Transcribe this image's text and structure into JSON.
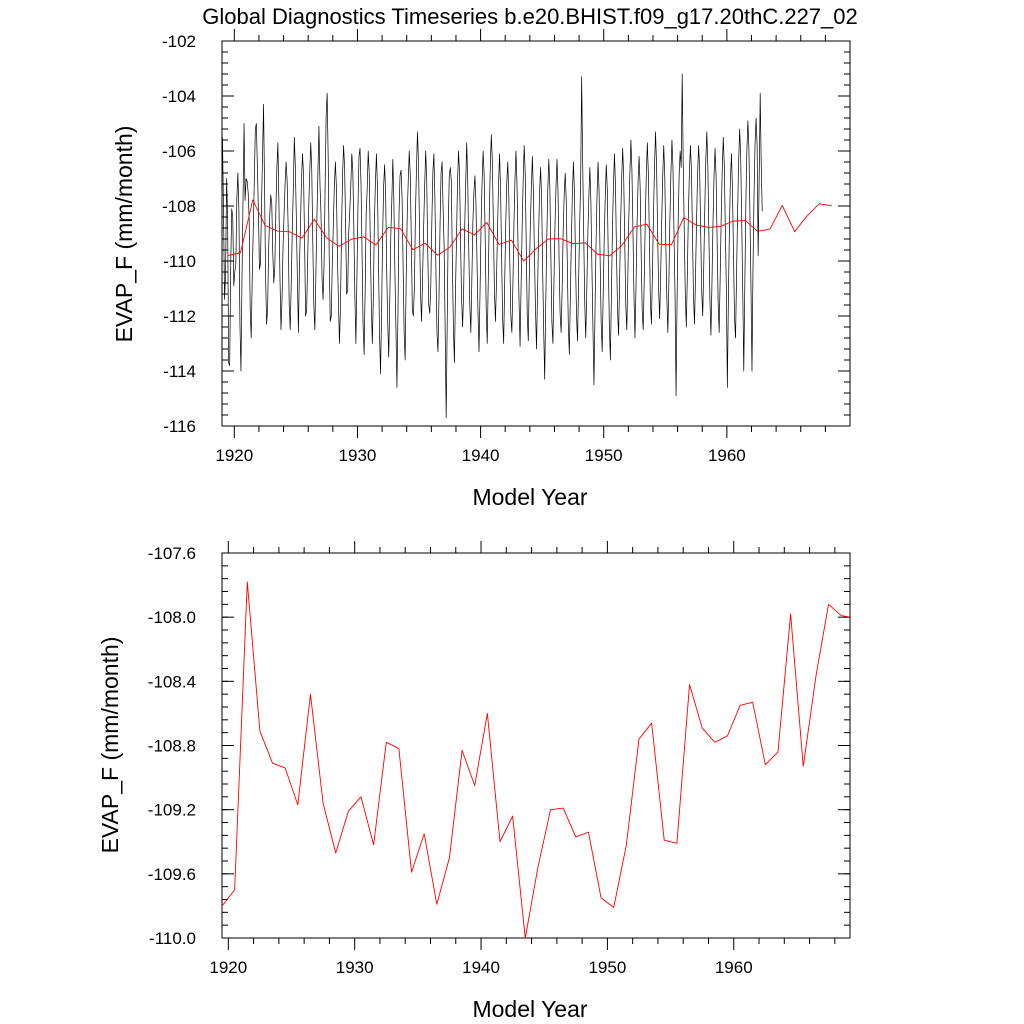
{
  "title": "Global Diagnostics Timeseries b.e20.BHIST.f09_g17.20thC.227_02",
  "colors": {
    "monthly": "#000000",
    "annual": "#ff0000",
    "frame": "#000000"
  },
  "chart_data": [
    {
      "type": "line",
      "panel": "monthly-and-annual",
      "xlabel": "Model Year",
      "ylabel": "EVAP_F (mm/month)",
      "xlim": [
        1919,
        1970
      ],
      "ylim": [
        -116,
        -102
      ],
      "xticks": [
        1920,
        1930,
        1940,
        1950,
        1960
      ],
      "xtick_labels": [
        "1920",
        "1930",
        "1940",
        "1950",
        "1960"
      ],
      "yticks": [
        -116,
        -114,
        -112,
        -110,
        -108,
        -106,
        -104,
        -102
      ],
      "ytick_labels": [
        "-116",
        "-114",
        "-112",
        "-110",
        "-108",
        "-106",
        "-104",
        "-102"
      ],
      "series": [
        {
          "name": "monthly",
          "color": "#000000",
          "x_start": 1919.04,
          "x_step": 0.0833333,
          "values": [
            -105.5,
            -108.2,
            -111.4,
            -110.5,
            -107.0,
            -108.4,
            -113.7,
            -113.8,
            -110.2,
            -108.1,
            -108.4,
            -110.9,
            -110.4,
            -110.1,
            -107.7,
            -106.8,
            -108.2,
            -112.3,
            -114.0,
            -110.6,
            -107.8,
            -105.0,
            -107.8,
            -107.0,
            -107.1,
            -107.5,
            -108.5,
            -111.8,
            -112.8,
            -110.6,
            -108.8,
            -107.1,
            -105.2,
            -105.0,
            -106.6,
            -108.2,
            -110.3,
            -110.1,
            -108.0,
            -106.2,
            -104.3,
            -107.3,
            -110.6,
            -112.3,
            -111.7,
            -109.5,
            -108.4,
            -107.6,
            -107.9,
            -109.7,
            -110.8,
            -110.2,
            -108.2,
            -106.6,
            -105.7,
            -107.9,
            -110.6,
            -112.5,
            -111.4,
            -109.5,
            -108.3,
            -107.2,
            -106.4,
            -107.1,
            -108.8,
            -111.6,
            -112.5,
            -110.8,
            -108.9,
            -107.4,
            -105.5,
            -106.6,
            -108.5,
            -110.7,
            -112.6,
            -110.2,
            -108.7,
            -107.0,
            -106.1,
            -106.9,
            -109.3,
            -112.0,
            -111.8,
            -110.0,
            -108.1,
            -106.8,
            -105.7,
            -106.7,
            -109.3,
            -111.6,
            -112.5,
            -110.5,
            -108.4,
            -106.8,
            -105.1,
            -107.2,
            -108.3,
            -110.6,
            -111.4,
            -110.1,
            -107.3,
            -104.7,
            -103.9,
            -106.3,
            -109.8,
            -112.2,
            -112.0,
            -110.1,
            -108.7,
            -107.3,
            -106.4,
            -107.3,
            -109.8,
            -111.5,
            -113.0,
            -111.6,
            -108.9,
            -106.9,
            -105.8,
            -106.6,
            -108.7,
            -111.2,
            -111.1,
            -109.0,
            -108.2,
            -107.3,
            -106.1,
            -106.7,
            -108.8,
            -111.3,
            -113.0,
            -110.6,
            -108.1,
            -106.2,
            -105.9,
            -107.2,
            -109.7,
            -112.3,
            -113.4,
            -111.1,
            -108.3,
            -107.4,
            -106.0,
            -106.8,
            -109.2,
            -111.5,
            -113.0,
            -111.3,
            -108.6,
            -107.2,
            -106.1,
            -107.3,
            -110.0,
            -112.6,
            -114.1,
            -112.0,
            -109.2,
            -107.3,
            -106.5,
            -107.6,
            -110.3,
            -112.2,
            -113.5,
            -111.5,
            -109.1,
            -107.8,
            -106.3,
            -107.8,
            -110.4,
            -112.4,
            -114.6,
            -111.9,
            -108.3,
            -106.9,
            -106.7,
            -107.7,
            -110.1,
            -112.6,
            -113.6,
            -110.7,
            -108.4,
            -107.1,
            -106.0,
            -106.9,
            -109.2,
            -111.8,
            -112.0,
            -111.0,
            -108.4,
            -106.7,
            -105.3,
            -106.4,
            -108.8,
            -111.2,
            -112.2,
            -110.6,
            -108.8,
            -107.3,
            -106.0,
            -107.0,
            -109.6,
            -111.6,
            -111.9,
            -110.9,
            -108.6,
            -106.8,
            -106.1,
            -107.7,
            -110.4,
            -112.6,
            -113.3,
            -111.3,
            -108.7,
            -106.8,
            -106.4,
            -108.1,
            -109.5,
            -112.6,
            -115.7,
            -112.2,
            -108.7,
            -106.9,
            -106.6,
            -107.1,
            -110.0,
            -112.4,
            -113.7,
            -111.2,
            -109.3,
            -107.2,
            -106.0,
            -106.8,
            -109.3,
            -111.4,
            -112.4,
            -111.1,
            -108.8,
            -107.2,
            -105.7,
            -107.1,
            -109.6,
            -111.6,
            -112.6,
            -110.7,
            -108.6,
            -107.5,
            -106.9,
            -107.9,
            -110.0,
            -111.9,
            -113.3,
            -111.1,
            -108.7,
            -107.1,
            -106.0,
            -106.9,
            -109.2,
            -111.8,
            -113.0,
            -110.7,
            -108.3,
            -106.5,
            -105.4,
            -106.4,
            -108.7,
            -111.1,
            -112.2,
            -110.8,
            -108.9,
            -107.2,
            -106.1,
            -107.4,
            -109.8,
            -112.1,
            -113.0,
            -110.8,
            -108.7,
            -107.2,
            -106.4,
            -107.6,
            -110.0,
            -112.0,
            -112.6,
            -110.9,
            -108.7,
            -107.1,
            -106.0,
            -107.2,
            -109.4,
            -111.5,
            -113.1,
            -110.9,
            -108.8,
            -107.1,
            -105.8,
            -106.8,
            -109.4,
            -112.0,
            -112.9,
            -110.5,
            -108.7,
            -107.3,
            -106.2,
            -107.5,
            -109.8,
            -111.7,
            -113.2,
            -111.2,
            -109.1,
            -107.5,
            -106.6,
            -107.7,
            -110.3,
            -112.5,
            -114.3,
            -111.6,
            -109.2,
            -107.4,
            -106.3,
            -107.3,
            -109.8,
            -112.2,
            -113.0,
            -110.8,
            -108.8,
            -107.3,
            -106.3,
            -107.5,
            -109.9,
            -111.9,
            -112.6,
            -111.0,
            -108.9,
            -107.6,
            -106.8,
            -107.8,
            -110.1,
            -112.3,
            -113.4,
            -111.3,
            -109.2,
            -107.5,
            -106.4,
            -107.5,
            -109.9,
            -112.0,
            -112.9,
            -110.9,
            -108.8,
            -107.2,
            -103.3,
            -106.4,
            -109.0,
            -111.5,
            -112.8,
            -111.1,
            -109.1,
            -107.7,
            -106.6,
            -107.8,
            -110.2,
            -112.4,
            -114.5,
            -111.9,
            -109.4,
            -107.6,
            -106.4,
            -107.5,
            -109.9,
            -112.2,
            -113.3,
            -111.2,
            -109.2,
            -107.7,
            -106.5,
            -107.4,
            -110.0,
            -112.4,
            -113.6,
            -111.2,
            -108.9,
            -107.2,
            -106.1,
            -107.3,
            -109.8,
            -111.8,
            -112.7,
            -110.7,
            -108.6,
            -107.0,
            -105.9,
            -107.0,
            -109.3,
            -111.6,
            -112.5,
            -110.6,
            -108.4,
            -106.8,
            -105.6,
            -106.7,
            -108.9,
            -111.3,
            -112.8,
            -110.9,
            -108.7,
            -107.1,
            -106.2,
            -107.3,
            -109.7,
            -111.8,
            -112.5,
            -110.7,
            -108.5,
            -106.9,
            -105.7,
            -106.8,
            -109.1,
            -111.5,
            -112.3,
            -110.4,
            -108.3,
            -106.6,
            -105.3,
            -106.5,
            -108.9,
            -111.0,
            -112.1,
            -110.5,
            -108.6,
            -106.9,
            -105.8,
            -106.9,
            -109.3,
            -111.3,
            -112.6,
            -110.8,
            -108.5,
            -106.8,
            -105.6,
            -106.6,
            -109.0,
            -111.2,
            -114.9,
            -111.4,
            -108.7,
            -106.9,
            -106.0,
            -106.6,
            -103.2,
            -106.5,
            -108.9,
            -111.2,
            -112.4,
            -110.5,
            -108.3,
            -106.8,
            -105.8,
            -106.7,
            -109.0,
            -111.3,
            -112.3,
            -110.5,
            -108.5,
            -106.8,
            -105.8,
            -106.7,
            -108.9,
            -111.1,
            -112.0,
            -110.2,
            -108.1,
            -106.3,
            -105.3,
            -106.6,
            -109.0,
            -111.4,
            -112.7,
            -110.8,
            -108.6,
            -106.9,
            -105.9,
            -106.9,
            -109.2,
            -111.5,
            -112.6,
            -110.6,
            -108.4,
            -106.7,
            -105.5,
            -106.5,
            -108.8,
            -111.0,
            -114.6,
            -111.4,
            -108.8,
            -107.0,
            -106.1,
            -107.4,
            -109.8,
            -112.1,
            -112.8,
            -110.4,
            -108.2,
            -106.4,
            -105.2,
            -106.2,
            -108.6,
            -111.1,
            -114.0,
            -110.9,
            -108.0,
            -106.0,
            -104.9,
            -105.9,
            -108.3,
            -110.9,
            -114.0,
            -110.2,
            -107.6,
            -105.7,
            -104.8,
            -105.8,
            -109.8,
            -107.0,
            -103.9,
            -106.5,
            -108.2
          ]
        },
        {
          "name": "annual mean",
          "color": "#ff0000",
          "x": [
            1919.5,
            1920.5,
            1921.5,
            1922.5,
            1923.5,
            1924.5,
            1925.5,
            1926.5,
            1927.5,
            1928.5,
            1929.5,
            1930.5,
            1931.5,
            1932.5,
            1933.5,
            1934.5,
            1935.5,
            1936.5,
            1937.5,
            1938.5,
            1939.5,
            1940.5,
            1941.5,
            1942.5,
            1943.5,
            1944.5,
            1945.5,
            1946.5,
            1947.5,
            1948.5,
            1949.5,
            1950.5,
            1951.5,
            1952.5,
            1953.5,
            1954.5,
            1955.5,
            1956.5,
            1957.5,
            1958.5,
            1959.5,
            1960.5,
            1961.5,
            1962.5,
            1963.5,
            1964.5,
            1965.5,
            1966.5,
            1967.5,
            1968.5
          ],
          "values": [
            -109.8,
            -109.7,
            -107.78,
            -108.71,
            -108.91,
            -108.94,
            -109.17,
            -108.48,
            -109.16,
            -109.47,
            -109.21,
            -109.12,
            -109.42,
            -108.78,
            -108.82,
            -109.59,
            -109.35,
            -109.79,
            -109.5,
            -108.83,
            -109.05,
            -108.6,
            -109.4,
            -109.24,
            -110.0,
            -109.56,
            -109.2,
            -109.19,
            -109.37,
            -109.34,
            -109.75,
            -109.81,
            -109.42,
            -108.76,
            -108.66,
            -109.39,
            -109.41,
            -108.42,
            -108.69,
            -108.78,
            -108.74,
            -108.55,
            -108.53,
            -108.92,
            -108.84,
            -107.98,
            -108.93,
            -108.37,
            -107.92,
            -107.99
          ]
        }
      ]
    },
    {
      "type": "line",
      "panel": "annual",
      "xlabel": "Model Year",
      "ylabel": "EVAP_F (mm/month)",
      "xlim": [
        1919.5,
        1969.2
      ],
      "ylim": [
        -110.0,
        -107.6
      ],
      "xticks": [
        1920,
        1930,
        1940,
        1950,
        1960
      ],
      "xtick_labels": [
        "1920",
        "1930",
        "1940",
        "1950",
        "1960"
      ],
      "yticks": [
        -110.0,
        -109.6,
        -109.2,
        -108.8,
        -108.4,
        -108.0,
        -107.6
      ],
      "ytick_labels": [
        "-110.0",
        "-109.6",
        "-109.2",
        "-108.8",
        "-108.4",
        "-108.0",
        "-107.6"
      ],
      "series": [
        {
          "name": "annual mean",
          "color": "#ff0000",
          "x": [
            1919.5,
            1920.5,
            1921.5,
            1922.5,
            1923.5,
            1924.5,
            1925.5,
            1926.5,
            1927.5,
            1928.5,
            1929.5,
            1930.5,
            1931.5,
            1932.5,
            1933.5,
            1934.5,
            1935.5,
            1936.5,
            1937.5,
            1938.5,
            1939.5,
            1940.5,
            1941.5,
            1942.5,
            1943.5,
            1944.5,
            1945.5,
            1946.5,
            1947.5,
            1948.5,
            1949.5,
            1950.5,
            1951.5,
            1952.5,
            1953.5,
            1954.5,
            1955.5,
            1956.5,
            1957.5,
            1958.5,
            1959.5,
            1960.5,
            1961.5,
            1962.5,
            1963.5,
            1964.5,
            1965.5,
            1966.5,
            1967.5,
            1968.5,
            1969.2
          ],
          "values": [
            -109.8,
            -109.7,
            -107.78,
            -108.71,
            -108.91,
            -108.94,
            -109.17,
            -108.48,
            -109.16,
            -109.47,
            -109.21,
            -109.12,
            -109.42,
            -108.78,
            -108.82,
            -109.59,
            -109.35,
            -109.79,
            -109.5,
            -108.83,
            -109.05,
            -108.6,
            -109.4,
            -109.24,
            -110.0,
            -109.56,
            -109.2,
            -109.19,
            -109.37,
            -109.34,
            -109.75,
            -109.81,
            -109.42,
            -108.76,
            -108.66,
            -109.39,
            -109.41,
            -108.42,
            -108.69,
            -108.78,
            -108.74,
            -108.55,
            -108.53,
            -108.92,
            -108.84,
            -107.98,
            -108.93,
            -108.37,
            -107.92,
            -107.99,
            -108.0
          ]
        }
      ]
    }
  ]
}
